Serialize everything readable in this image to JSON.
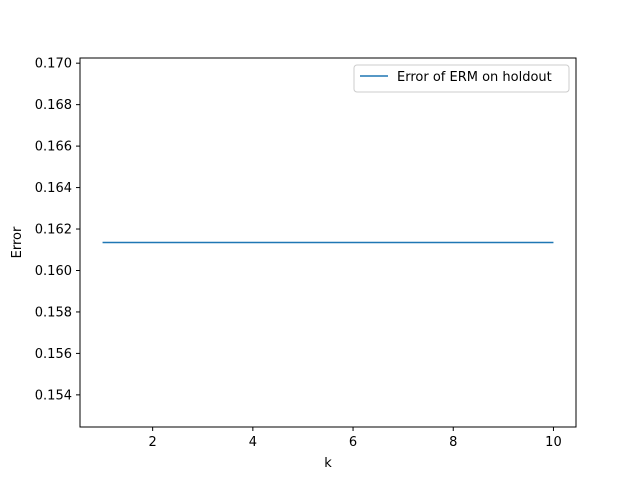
{
  "chart_data": {
    "type": "line",
    "title": "",
    "xlabel": "k",
    "ylabel": "Error",
    "xlim": [
      0.55,
      10.45
    ],
    "ylim": [
      0.15245,
      0.17025
    ],
    "xticks": [
      2,
      4,
      6,
      8,
      10
    ],
    "yticks": [
      0.154,
      0.156,
      0.158,
      0.16,
      0.162,
      0.164,
      0.166,
      0.168,
      0.17
    ],
    "ytick_labels": [
      "0.154",
      "0.156",
      "0.158",
      "0.160",
      "0.162",
      "0.164",
      "0.166",
      "0.168",
      "0.170"
    ],
    "grid": false,
    "legend_position": "top-right",
    "series": [
      {
        "name": "Error of ERM on holdout",
        "color": "#1f77b4",
        "x": [
          1,
          2,
          3,
          4,
          5,
          6,
          7,
          8,
          9,
          10
        ],
        "y": [
          0.16135,
          0.16135,
          0.16135,
          0.16135,
          0.16135,
          0.16135,
          0.16135,
          0.16135,
          0.16135,
          0.16135
        ]
      }
    ]
  }
}
